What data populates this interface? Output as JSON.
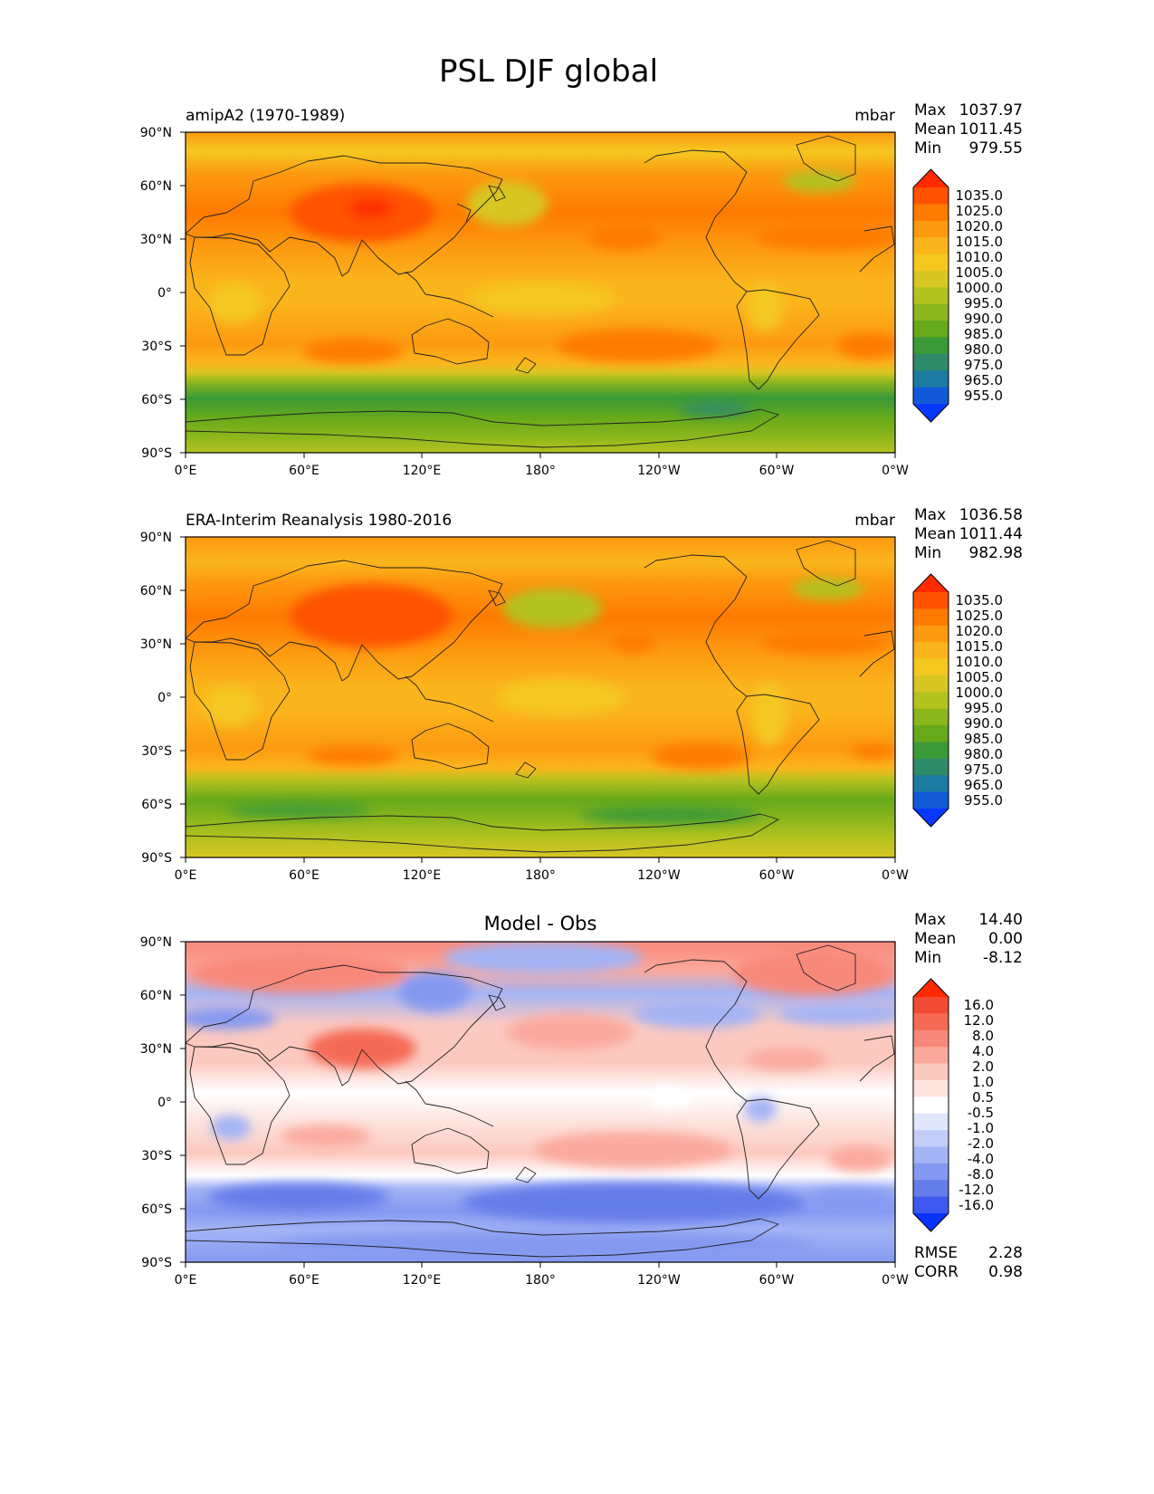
{
  "title": "PSL DJF global",
  "chart_data": [
    {
      "type": "heatmap",
      "title_left": "amipA2 (1970-1989)",
      "units": "mbar",
      "stats": [
        {
          "label": "Max",
          "value": "1037.97"
        },
        {
          "label": "Mean",
          "value": "1011.45"
        },
        {
          "label": "Min",
          "value": "979.55"
        }
      ],
      "colorbar_labels": [
        "1035.0",
        "1025.0",
        "1020.0",
        "1015.0",
        "1010.0",
        "1005.0",
        "1000.0",
        "995.0",
        "990.0",
        "985.0",
        "980.0",
        "975.0",
        "965.0",
        "955.0"
      ],
      "latitude_ticks": [
        "90°N",
        "60°N",
        "30°N",
        "0°",
        "30°S",
        "60°S",
        "90°S"
      ],
      "longitude_ticks": [
        "0°E",
        "60°E",
        "120°E",
        "180°",
        "120°W",
        "60°W",
        "0°W"
      ]
    },
    {
      "type": "heatmap",
      "title_left": "ERA-Interim Reanalysis 1980-2016",
      "units": "mbar",
      "stats": [
        {
          "label": "Max",
          "value": "1036.58"
        },
        {
          "label": "Mean",
          "value": "1011.44"
        },
        {
          "label": "Min",
          "value": "982.98"
        }
      ],
      "colorbar_labels": [
        "1035.0",
        "1025.0",
        "1020.0",
        "1015.0",
        "1010.0",
        "1005.0",
        "1000.0",
        "995.0",
        "990.0",
        "985.0",
        "980.0",
        "975.0",
        "965.0",
        "955.0"
      ],
      "latitude_ticks": [
        "90°N",
        "60°N",
        "30°N",
        "0°",
        "30°S",
        "60°S",
        "90°S"
      ],
      "longitude_ticks": [
        "0°E",
        "60°E",
        "120°E",
        "180°",
        "120°W",
        "60°W",
        "0°W"
      ]
    },
    {
      "type": "heatmap",
      "title_center": "Model - Obs",
      "stats": [
        {
          "label": "Max",
          "value": "14.40"
        },
        {
          "label": "Mean",
          "value": "0.00"
        },
        {
          "label": "Min",
          "value": "-8.12"
        }
      ],
      "colorbar_labels": [
        "16.0",
        "12.0",
        "8.0",
        "4.0",
        "2.0",
        "1.0",
        "0.5",
        "-0.5",
        "-1.0",
        "-2.0",
        "-4.0",
        "-8.0",
        "-12.0",
        "-16.0"
      ],
      "extra_stats": [
        {
          "label": "RMSE",
          "value": "2.28"
        },
        {
          "label": "CORR",
          "value": "0.98"
        }
      ],
      "latitude_ticks": [
        "90°N",
        "60°N",
        "30°N",
        "0°",
        "30°S",
        "60°S",
        "90°S"
      ],
      "longitude_ticks": [
        "0°E",
        "60°E",
        "120°E",
        "180°",
        "120°W",
        "60°W",
        "0°W"
      ]
    }
  ],
  "colors": {
    "psl_scale": [
      "#ff2a00",
      "#fe5200",
      "#fe7a00",
      "#fd9a10",
      "#fbb51c",
      "#f4c820",
      "#d8c623",
      "#b4c220",
      "#8bb61c",
      "#66a91a",
      "#3a9a38",
      "#2f8a6a",
      "#1d7aa0",
      "#1259d8",
      "#0838ff"
    ],
    "diff_scale": [
      "#ff2a00",
      "#f24b33",
      "#f56a55",
      "#f8887a",
      "#fba99c",
      "#fcc9c0",
      "#fde4de",
      "#ffffff",
      "#e0e6fb",
      "#c3cdf8",
      "#a4b4f5",
      "#8499f1",
      "#657de9",
      "#3f58f0",
      "#0833ff"
    ]
  }
}
